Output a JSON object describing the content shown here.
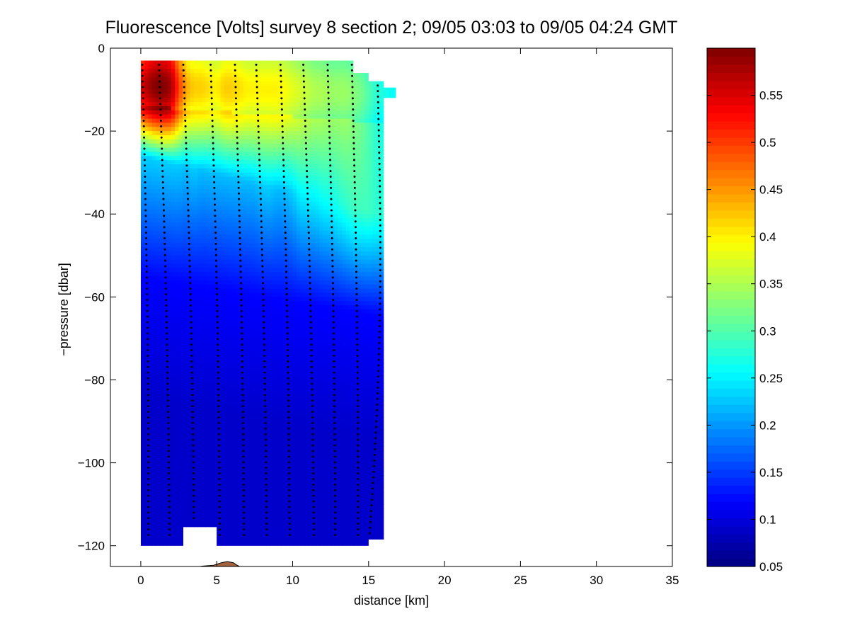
{
  "chart_data": {
    "type": "heatmap",
    "title": "Fluorescence [Volts] survey 8 section 2; 09/05 03:03 to 09/05 04:24 GMT",
    "xlabel": "distance [km]",
    "ylabel": "−pressure [dbar]",
    "xlim": [
      -2,
      35
    ],
    "ylim": [
      -125,
      0
    ],
    "xticks": [
      0,
      5,
      10,
      15,
      20,
      25,
      30,
      35
    ],
    "xtick_labels": [
      "0",
      "5",
      "10",
      "15",
      "20",
      "25",
      "30",
      "35"
    ],
    "yticks": [
      0,
      -20,
      -40,
      -60,
      -80,
      -100,
      -120
    ],
    "ytick_labels": [
      "0",
      "−20",
      "−40",
      "−60",
      "−80",
      "−100",
      "−120"
    ],
    "colormap": "jet",
    "clim": [
      0.05,
      0.6
    ],
    "colorbar_ticks": [
      0.05,
      0.1,
      0.15,
      0.2,
      0.25,
      0.3,
      0.35,
      0.4,
      0.45,
      0.5,
      0.55
    ],
    "colorbar_tick_labels": [
      "0.05",
      "0.1",
      "0.15",
      "0.2",
      "0.25",
      "0.3",
      "0.35",
      "0.4",
      "0.45",
      "0.5",
      "0.55"
    ],
    "field": {
      "x_start": 0,
      "x_step": 0.5,
      "depths": [
        -4,
        -8,
        -12,
        -16,
        -20,
        -24,
        -28,
        -32,
        -36,
        -40,
        -46,
        -52,
        -60,
        -70,
        -80,
        -95,
        -110,
        -120
      ],
      "surface_profile": [
        0.55,
        0.58,
        0.6,
        0.6,
        0.58,
        0.5,
        0.44,
        0.42,
        0.42,
        0.41,
        0.4,
        0.42,
        0.42,
        0.41,
        0.4,
        0.4,
        0.4,
        0.4,
        0.4,
        0.39,
        0.38,
        0.37,
        0.36,
        0.35,
        0.35,
        0.34,
        0.34,
        0.34,
        0.33,
        0.32,
        0.3,
        0.28,
        0.27,
        0.26
      ],
      "deep_profile": [
        0.23,
        0.23,
        0.23,
        0.23,
        0.23,
        0.23,
        0.22,
        0.23,
        0.22,
        0.22,
        0.22,
        0.22,
        0.22,
        0.22,
        0.22,
        0.22,
        0.23,
        0.23,
        0.22,
        0.22,
        0.23,
        0.25,
        0.25,
        0.25,
        0.26,
        0.26,
        0.27,
        0.28,
        0.29,
        0.29,
        0.29,
        0.28,
        0.28,
        0.27
      ],
      "abyss_value": 0.09
    },
    "data_extent": {
      "outline": [
        [
          0,
          -3
        ],
        [
          14,
          -3
        ],
        [
          14,
          -6
        ],
        [
          15,
          -6
        ],
        [
          15,
          -8
        ],
        [
          16,
          -8
        ],
        [
          16,
          -9.5
        ],
        [
          16.8,
          -9.5
        ],
        [
          16.8,
          -12
        ],
        [
          16,
          -12
        ],
        [
          16,
          -118.5
        ],
        [
          15,
          -118.5
        ],
        [
          15,
          -120
        ],
        [
          5,
          -120
        ],
        [
          5,
          -115.5
        ],
        [
          2.8,
          -115.5
        ],
        [
          2.8,
          -120
        ],
        [
          0,
          -120
        ]
      ]
    },
    "profiles": [
      {
        "top": [
          0.1,
          -4
        ],
        "bottom": [
          0.5,
          -118.5
        ]
      },
      {
        "top": [
          1.2,
          -4
        ],
        "bottom": [
          1.9,
          -118
        ]
      },
      {
        "top": [
          2.8,
          -4
        ],
        "bottom": [
          3.5,
          -114
        ]
      },
      {
        "top": [
          4.6,
          -4
        ],
        "bottom": [
          5.2,
          -118
        ]
      },
      {
        "top": [
          6.2,
          -4
        ],
        "bottom": [
          6.8,
          -118
        ]
      },
      {
        "top": [
          7.6,
          -4
        ],
        "bottom": [
          8.3,
          -118
        ]
      },
      {
        "top": [
          9.2,
          -4
        ],
        "bottom": [
          9.8,
          -118
        ]
      },
      {
        "top": [
          10.7,
          -4
        ],
        "bottom": [
          11.4,
          -118
        ]
      },
      {
        "top": [
          12.3,
          -4
        ],
        "bottom": [
          12.8,
          -118
        ]
      },
      {
        "top": [
          13.9,
          -4
        ],
        "bottom": [
          14.3,
          -118
        ]
      },
      {
        "top": [
          15.6,
          -9
        ],
        "bottom": [
          14.9,
          -118
        ]
      }
    ],
    "seafloor_color": "#a0623f",
    "box_color": "#000000"
  }
}
